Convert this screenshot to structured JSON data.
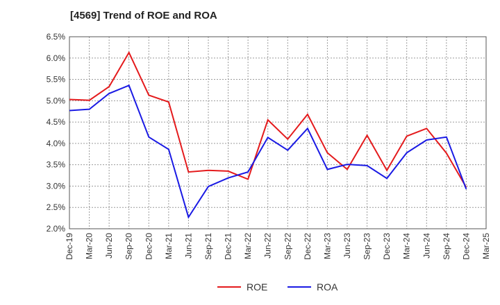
{
  "title": "[4569]  Trend of ROE and ROA",
  "chart_data": {
    "type": "line",
    "x": [
      "Dec-19",
      "Mar-20",
      "Jun-20",
      "Sep-20",
      "Dec-20",
      "Mar-21",
      "Jun-21",
      "Sep-21",
      "Dec-21",
      "Mar-22",
      "Jun-22",
      "Sep-22",
      "Dec-22",
      "Mar-23",
      "Jun-23",
      "Sep-23",
      "Dec-23",
      "Mar-24",
      "Jun-24",
      "Sep-24",
      "Dec-24",
      "Mar-25"
    ],
    "y_ticks": [
      "6.5%",
      "6.0%",
      "5.5%",
      "5.0%",
      "4.5%",
      "4.0%",
      "3.5%",
      "3.0%",
      "2.5%",
      "2.0%"
    ],
    "ylim": [
      2.0,
      6.5
    ],
    "grid": true,
    "legend_position": "bottom",
    "series": [
      {
        "name": "ROE",
        "color": "#e41a1c",
        "values": [
          5.03,
          5.01,
          5.33,
          6.13,
          5.13,
          4.97,
          3.33,
          3.37,
          3.35,
          3.16,
          4.55,
          4.1,
          4.68,
          3.78,
          3.39,
          4.19,
          3.37,
          4.17,
          4.35,
          3.77,
          2.97,
          null
        ]
      },
      {
        "name": "ROA",
        "color": "#1a1ae4",
        "values": [
          4.77,
          4.8,
          5.17,
          5.36,
          4.15,
          3.86,
          2.27,
          2.99,
          3.19,
          3.33,
          4.14,
          3.84,
          4.35,
          3.39,
          3.51,
          3.48,
          3.18,
          3.78,
          4.08,
          4.15,
          2.93,
          null
        ]
      }
    ]
  }
}
